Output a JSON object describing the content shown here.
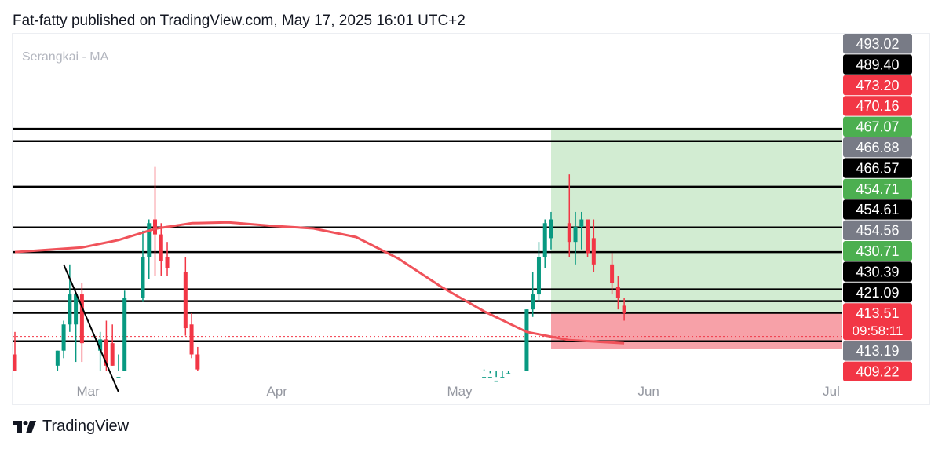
{
  "header": {
    "text": "Fat-fatty published on TradingView.com, May 17, 2025 16:01 UTC+2"
  },
  "footer": {
    "brand": "TradingView",
    "logo_icon": "tradingview-logo-icon"
  },
  "colors": {
    "up": "#089981",
    "down": "#f23645",
    "ma": "#f0525a",
    "profit_zone": "#d2ecd2",
    "loss_zone": "#f7a1a8",
    "level_line": "#000000",
    "label_gray": "#787b86",
    "label_black": "#000000",
    "label_red": "#f23645",
    "label_green": "#4caf50"
  },
  "chart_data": {
    "type": "candlestick",
    "title": "Serangkai - MA",
    "ylim": [
      405.5,
      495.5
    ],
    "x_ticks": [
      "Mar",
      "Apr",
      "May",
      "Jun",
      "Jul"
    ],
    "horizontal_levels": [
      470.16,
      466.88,
      454.71,
      454.61,
      443.85,
      437.3,
      427.35,
      424.2,
      421.09,
      413.51
    ],
    "price_labels": [
      {
        "value": "493.02",
        "style": "gray"
      },
      {
        "value": "489.40",
        "style": "black"
      },
      {
        "value": "473.20",
        "style": "red"
      },
      {
        "value": "470.16",
        "style": "red"
      },
      {
        "value": "467.07",
        "style": "green"
      },
      {
        "value": "466.88",
        "style": "gray"
      },
      {
        "value": "466.57",
        "style": "black"
      },
      {
        "value": "454.71",
        "style": "green"
      },
      {
        "value": "454.61",
        "style": "black"
      },
      {
        "value": "454.56",
        "style": "gray"
      },
      {
        "value": "430.71",
        "style": "green"
      },
      {
        "value": "430.39",
        "style": "black"
      },
      {
        "value": "421.09",
        "style": "black"
      },
      {
        "value": "413.51",
        "style": "red",
        "sub": "09:58:11"
      },
      {
        "value": "413.19",
        "style": "gray"
      },
      {
        "value": "409.22",
        "style": "red"
      }
    ],
    "last_price": 421.09,
    "position": {
      "entry": 421.09,
      "target": 470.16,
      "stop": 413.51
    },
    "candles": [
      {
        "date": "Feb 17",
        "o": 410,
        "h": 416,
        "l": 400,
        "c": 404
      },
      {
        "date": "Feb 24",
        "o": 407,
        "h": 411,
        "l": 400,
        "c": 411
      },
      {
        "date": "Feb 25",
        "o": 411,
        "h": 419,
        "l": 409,
        "c": 418
      },
      {
        "date": "Feb 26",
        "o": 418,
        "h": 434,
        "l": 416,
        "c": 426
      },
      {
        "date": "Feb 27",
        "o": 418,
        "h": 426,
        "l": 408,
        "c": 426
      },
      {
        "date": "Feb 28",
        "o": 426,
        "h": 429,
        "l": 408,
        "c": 413
      },
      {
        "date": "Mar 3",
        "o": 411,
        "h": 416,
        "l": 405,
        "c": 414
      },
      {
        "date": "Mar 4",
        "o": 414,
        "h": 419,
        "l": 404,
        "c": 407
      },
      {
        "date": "Mar 5",
        "o": 413,
        "h": 418,
        "l": 407,
        "c": 407
      },
      {
        "date": "Mar 6",
        "o": 404,
        "h": 410,
        "l": 400,
        "c": 404
      },
      {
        "date": "Mar 7",
        "o": 401,
        "h": 427,
        "l": 401,
        "c": 425
      },
      {
        "date": "Mar 10",
        "o": 425,
        "h": 443,
        "l": 424,
        "c": 436
      },
      {
        "date": "Mar 11",
        "o": 436,
        "h": 446,
        "l": 430,
        "c": 445
      },
      {
        "date": "Mar 12",
        "o": 446,
        "h": 460,
        "l": 431,
        "c": 442
      },
      {
        "date": "Mar 13",
        "o": 442,
        "h": 445,
        "l": 431,
        "c": 435
      },
      {
        "date": "Mar 14",
        "o": 436,
        "h": 440,
        "l": 431,
        "c": 433
      },
      {
        "date": "Mar 17",
        "o": 432,
        "h": 436,
        "l": 415,
        "c": 417
      },
      {
        "date": "Mar 18",
        "o": 418,
        "h": 421,
        "l": 409,
        "c": 410
      },
      {
        "date": "Mar 19",
        "o": 410,
        "h": 412,
        "l": 405,
        "c": 406
      },
      {
        "date": "May 5",
        "o": 402,
        "h": 406,
        "l": 400,
        "c": 404
      },
      {
        "date": "May 6",
        "o": 403,
        "h": 405,
        "l": 400,
        "c": 404
      },
      {
        "date": "May 7",
        "o": 403,
        "h": 404,
        "l": 400,
        "c": 403
      },
      {
        "date": "May 8",
        "o": 402,
        "h": 404,
        "l": 400,
        "c": 404
      },
      {
        "date": "May 9",
        "o": 403,
        "h": 405,
        "l": 400,
        "c": 405
      },
      {
        "date": "May 12",
        "o": 403,
        "h": 422,
        "l": 400,
        "c": 422
      },
      {
        "date": "May 13",
        "o": 422,
        "h": 432,
        "l": 420,
        "c": 426
      },
      {
        "date": "May 14",
        "o": 426,
        "h": 440,
        "l": 424,
        "c": 436
      },
      {
        "date": "May 15",
        "o": 436,
        "h": 446,
        "l": 433,
        "c": 445
      },
      {
        "date": "May 16",
        "o": 441,
        "h": 448,
        "l": 438,
        "c": 446
      },
      {
        "date": "May 19",
        "o": 445,
        "h": 458,
        "l": 436,
        "c": 440
      },
      {
        "date": "May 20",
        "o": 440,
        "h": 448,
        "l": 434,
        "c": 444
      },
      {
        "date": "May 21",
        "o": 444,
        "h": 448,
        "l": 438,
        "c": 446
      },
      {
        "date": "May 22",
        "o": 446,
        "h": 446,
        "l": 436,
        "c": 437
      },
      {
        "date": "May 23",
        "o": 441,
        "h": 446,
        "l": 432,
        "c": 434
      },
      {
        "date": "May 26",
        "o": 434,
        "h": 437,
        "l": 426,
        "c": 429
      },
      {
        "date": "May 27",
        "o": 428,
        "h": 431,
        "l": 422,
        "c": 425
      },
      {
        "date": "May 28",
        "o": 423,
        "h": 425,
        "l": 419,
        "c": 421
      }
    ],
    "moving_average": [
      {
        "date": "Feb 17",
        "value": 437.3
      },
      {
        "date": "Feb 28",
        "value": 438.5
      },
      {
        "date": "Mar 6",
        "value": 440.5
      },
      {
        "date": "Mar 12",
        "value": 443.5
      },
      {
        "date": "Mar 18",
        "value": 445.0
      },
      {
        "date": "Mar 24",
        "value": 445.2
      },
      {
        "date": "Mar 31",
        "value": 444.3
      },
      {
        "date": "Apr 7",
        "value": 443.6
      },
      {
        "date": "Apr 14",
        "value": 441.3
      },
      {
        "date": "Apr 21",
        "value": 435.5
      },
      {
        "date": "Apr 28",
        "value": 428.0
      },
      {
        "date": "May 5",
        "value": 421.5
      },
      {
        "date": "May 12",
        "value": 416.0
      },
      {
        "date": "May 19",
        "value": 413.8
      },
      {
        "date": "May 28",
        "value": 413.0
      }
    ],
    "trend_line": {
      "start": {
        "date": "Feb 25",
        "value": 434
      },
      "end": {
        "date": "Mar 6",
        "value": 400
      }
    }
  }
}
